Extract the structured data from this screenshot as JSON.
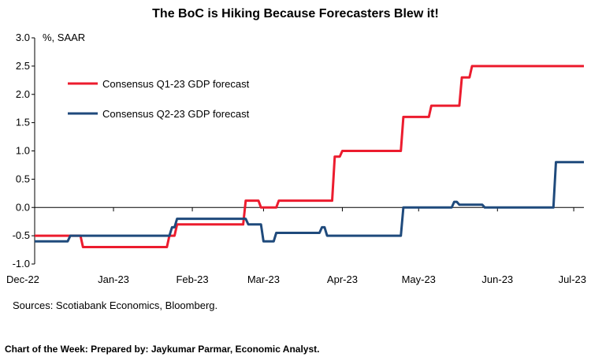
{
  "chart_data": {
    "type": "line",
    "title": "The BoC is Hiking Because Forecasters Blew it!",
    "ylabel": "%, SAAR",
    "xlabel": "",
    "ylim": [
      -1.0,
      3.0
    ],
    "y_ticks": [
      "3.0",
      "2.5",
      "2.0",
      "1.5",
      "1.0",
      "0.5",
      "0.0",
      "-0.5",
      "-1.0"
    ],
    "x_ticks": [
      "Dec-22",
      "Jan-23",
      "Feb-23",
      "Mar-23",
      "Apr-23",
      "May-23",
      "Jun-23",
      "Jul-23"
    ],
    "grid": false,
    "legend_position": "top-left",
    "series": [
      {
        "name": "Consensus Q1-23 GDP forecast",
        "color": "#ec1c2e",
        "points": [
          [
            "2022-12-01",
            -0.5
          ],
          [
            "2022-12-19",
            -0.5
          ],
          [
            "2022-12-20",
            -0.7
          ],
          [
            "2023-01-22",
            -0.7
          ],
          [
            "2023-01-23",
            -0.5
          ],
          [
            "2023-01-25",
            -0.5
          ],
          [
            "2023-01-26",
            -0.3
          ],
          [
            "2023-02-21",
            -0.3
          ],
          [
            "2023-02-22",
            0.12
          ],
          [
            "2023-02-27",
            0.12
          ],
          [
            "2023-02-28",
            0.0
          ],
          [
            "2023-03-06",
            0.0
          ],
          [
            "2023-03-07",
            0.12
          ],
          [
            "2023-03-28",
            0.12
          ],
          [
            "2023-03-29",
            0.9
          ],
          [
            "2023-03-31",
            0.9
          ],
          [
            "2023-04-01",
            1.0
          ],
          [
            "2023-04-24",
            1.0
          ],
          [
            "2023-04-25",
            1.6
          ],
          [
            "2023-05-05",
            1.6
          ],
          [
            "2023-05-06",
            1.8
          ],
          [
            "2023-05-17",
            1.8
          ],
          [
            "2023-05-18",
            2.3
          ],
          [
            "2023-05-21",
            2.3
          ],
          [
            "2023-05-22",
            2.5
          ],
          [
            "2023-07-05",
            2.5
          ]
        ]
      },
      {
        "name": "Consensus Q2-23 GDP forecast",
        "color": "#1f4a7c",
        "points": [
          [
            "2022-12-01",
            -0.6
          ],
          [
            "2022-12-14",
            -0.6
          ],
          [
            "2022-12-15",
            -0.5
          ],
          [
            "2023-01-23",
            -0.5
          ],
          [
            "2023-01-24",
            -0.35
          ],
          [
            "2023-01-25",
            -0.35
          ],
          [
            "2023-01-26",
            -0.2
          ],
          [
            "2023-02-22",
            -0.2
          ],
          [
            "2023-02-23",
            -0.3
          ],
          [
            "2023-02-28",
            -0.3
          ],
          [
            "2023-03-01",
            -0.6
          ],
          [
            "2023-03-05",
            -0.6
          ],
          [
            "2023-03-06",
            -0.45
          ],
          [
            "2023-03-23",
            -0.45
          ],
          [
            "2023-03-24",
            -0.35
          ],
          [
            "2023-03-25",
            -0.35
          ],
          [
            "2023-03-26",
            -0.5
          ],
          [
            "2023-04-24",
            -0.5
          ],
          [
            "2023-04-25",
            0.0
          ],
          [
            "2023-05-14",
            0.0
          ],
          [
            "2023-05-15",
            0.1
          ],
          [
            "2023-05-16",
            0.1
          ],
          [
            "2023-05-17",
            0.05
          ],
          [
            "2023-05-26",
            0.05
          ],
          [
            "2023-05-27",
            0.0
          ],
          [
            "2023-06-23",
            0.0
          ],
          [
            "2023-06-24",
            0.8
          ],
          [
            "2023-07-05",
            0.8
          ]
        ]
      }
    ]
  },
  "footer": {
    "sources": "Sources: Scotiabank Economics, Bloomberg.",
    "credit": "Chart of the Week: Prepared by: Jaykumar Parmar, Economic Analyst."
  }
}
